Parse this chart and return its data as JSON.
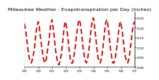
{
  "title": "Milwaukee Weather - Evapotranspiration per Day (Inches)",
  "background_color": "#ffffff",
  "line_color": "#cc0000",
  "grid_color": "#aaaaaa",
  "ylim": [
    0.0,
    0.28
  ],
  "yticks": [
    0.0,
    0.05,
    0.1,
    0.15,
    0.2,
    0.25
  ],
  "ytick_labels": [
    "0.00",
    "0.05",
    "0.10",
    "0.15",
    "0.20",
    "0.25"
  ],
  "values": [
    0.22,
    0.19,
    0.14,
    0.09,
    0.05,
    0.03,
    0.02,
    0.04,
    0.07,
    0.11,
    0.17,
    0.21,
    0.23,
    0.2,
    0.15,
    0.1,
    0.06,
    0.03,
    0.02,
    0.04,
    0.08,
    0.12,
    0.17,
    0.22,
    0.24,
    0.2,
    0.15,
    0.09,
    0.05,
    0.02,
    0.01,
    0.03,
    0.06,
    0.11,
    0.17,
    0.22,
    0.23,
    0.19,
    0.14,
    0.08,
    0.04,
    0.02,
    0.02,
    0.05,
    0.09,
    0.14,
    0.19,
    0.23,
    0.24,
    0.21,
    0.16,
    0.1,
    0.06,
    0.03,
    0.02,
    0.04,
    0.08,
    0.13,
    0.19,
    0.23,
    0.25,
    0.21,
    0.16,
    0.1,
    0.05,
    0.03,
    0.02,
    0.04,
    0.08,
    0.13,
    0.19,
    0.23,
    0.24,
    0.2,
    0.15,
    0.09,
    0.05,
    0.02,
    0.02,
    0.04,
    0.08,
    0.12,
    0.18,
    0.22,
    0.23,
    0.19,
    0.14,
    0.09,
    0.05,
    0.03,
    0.02,
    0.04,
    0.08,
    0.13,
    0.18,
    0.22,
    0.23
  ],
  "xtick_labels": [
    "'99",
    "'00",
    "'01",
    "'02",
    "'03",
    "'04",
    "'05",
    "'06",
    "'07"
  ],
  "points_per_year": 12,
  "title_fontsize": 4.5,
  "tick_fontsize": 3.2,
  "line_width": 1.2,
  "marker_size": 1.8
}
